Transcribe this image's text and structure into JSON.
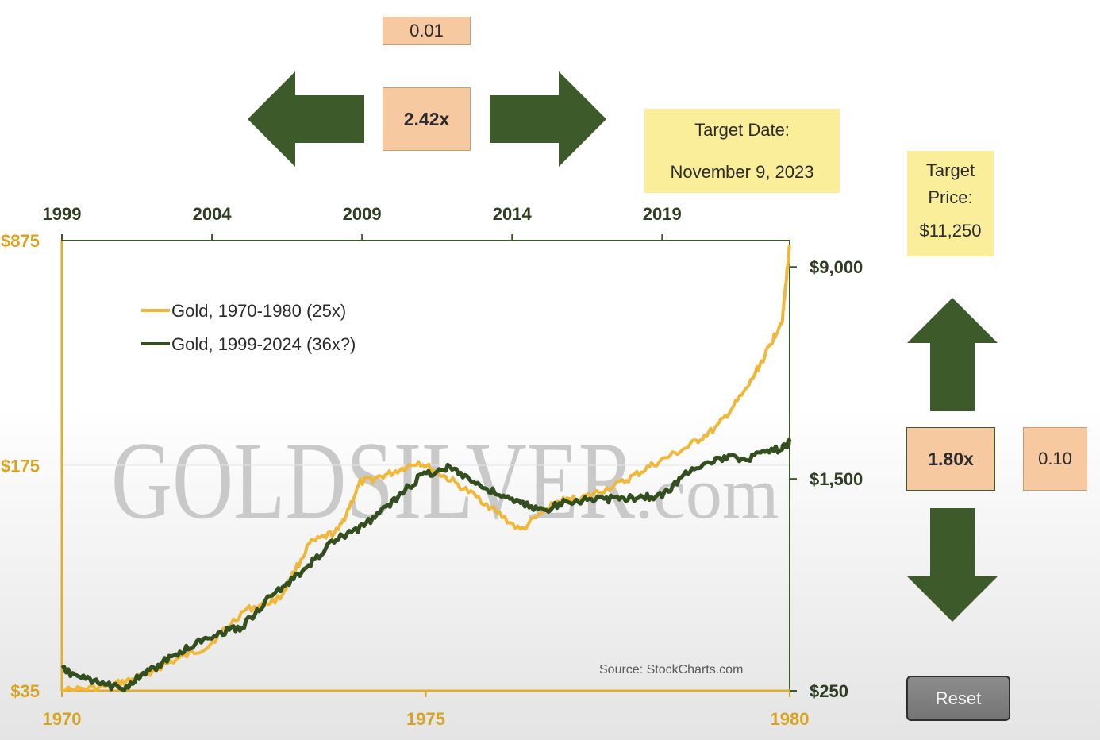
{
  "controls": {
    "x_step": "0.01",
    "x_multiplier": "2.42x",
    "y_multiplier": "1.80x",
    "y_step": "0.10",
    "target_date_label": "Target Date:",
    "target_date_value": "November 9, 2023",
    "target_price_label_1": "Target",
    "target_price_label_2": "Price:",
    "target_price_value": "$11,250",
    "reset_label": "Reset"
  },
  "colors": {
    "gold_1970s": "#f0b83a",
    "gold_1999": "#344f1f",
    "arrow": "#3d5a2a",
    "top_axis": "#3d5a2a",
    "left_axis": "#e2ae2d"
  },
  "chart_data": {
    "type": "line",
    "watermark": {
      "main": "GOLDSILVER",
      "suffix": ".com"
    },
    "source": "Source: StockCharts.com",
    "scale": "log",
    "legend": [
      {
        "name": "Gold, 1970-1980 (25x)",
        "color": "#f0b83a"
      },
      {
        "name": "Gold, 1999-2024 (36x?)",
        "color": "#344f1f"
      }
    ],
    "bottom_axis": {
      "range": [
        1970,
        1980
      ],
      "ticks": [
        "1970",
        "1975",
        "1980"
      ],
      "color": "#d9a322"
    },
    "top_axis": {
      "range": [
        1999,
        2023.25
      ],
      "ticks": [
        "1999",
        "2004",
        "2009",
        "2014",
        "2019"
      ],
      "color": "#3d5a2a"
    },
    "left_axis": {
      "range": [
        35,
        875
      ],
      "ticks": [
        {
          "value": 35,
          "label": "$35"
        },
        {
          "value": 175,
          "label": "$175"
        },
        {
          "value": 875,
          "label": "$875"
        }
      ],
      "color": "#d9a322"
    },
    "right_axis": {
      "range": [
        250,
        11250
      ],
      "ticks": [
        {
          "value": 250,
          "label": "$250"
        },
        {
          "value": 1500,
          "label": "$1,500"
        },
        {
          "value": 9000,
          "label": "$9,000"
        }
      ],
      "color": "#3d5a2a"
    },
    "series": [
      {
        "name": "Gold, 1970-1980 (25x)",
        "axis": "bottom-left",
        "x": [
          1970,
          1970.6,
          1971,
          1971.5,
          1972,
          1972.5,
          1973,
          1973.4,
          1973.8,
          1974.1,
          1974.5,
          1974.9,
          1975.3,
          1975.8,
          1976.3,
          1976.8,
          1977.2,
          1977.7,
          1978.1,
          1978.6,
          1979.0,
          1979.4,
          1979.7,
          1979.9,
          1980.0
        ],
        "y": [
          35,
          36,
          38,
          43,
          48,
          62,
          68,
          100,
          110,
          155,
          165,
          180,
          160,
          135,
          110,
          135,
          140,
          155,
          175,
          200,
          230,
          300,
          400,
          500,
          850
        ]
      },
      {
        "name": "Gold, 1999-2024 (36x?)",
        "axis": "top-right",
        "x": [
          1999,
          2000,
          2001,
          2002,
          2003,
          2004,
          2005,
          2006,
          2007,
          2008,
          2009,
          2010,
          2011,
          2012,
          2013,
          2014,
          2015,
          2016,
          2017,
          2018,
          2019,
          2020,
          2021,
          2022,
          2023.0,
          2023.25
        ],
        "y": [
          300,
          270,
          255,
          300,
          350,
          400,
          430,
          560,
          680,
          880,
          1000,
          1230,
          1550,
          1660,
          1400,
          1250,
          1150,
          1250,
          1260,
          1280,
          1300,
          1650,
          1780,
          1800,
          1950,
          2050
        ]
      }
    ]
  }
}
